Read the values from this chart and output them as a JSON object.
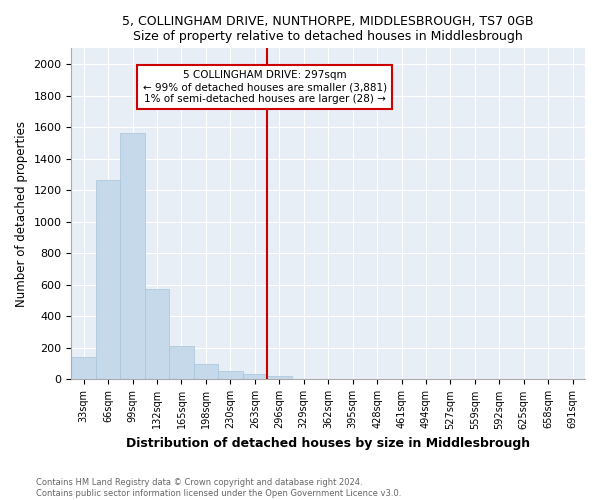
{
  "title": "5, COLLINGHAM DRIVE, NUNTHORPE, MIDDLESBROUGH, TS7 0GB",
  "subtitle": "Size of property relative to detached houses in Middlesbrough",
  "xlabel": "Distribution of detached houses by size in Middlesbrough",
  "ylabel": "Number of detached properties",
  "footnote1": "Contains HM Land Registry data © Crown copyright and database right 2024.",
  "footnote2": "Contains public sector information licensed under the Open Government Licence v3.0.",
  "annotation_title": "5 COLLINGHAM DRIVE: 297sqm",
  "annotation_line1": "← 99% of detached houses are smaller (3,881)",
  "annotation_line2": "1% of semi-detached houses are larger (28) →",
  "bar_color": "#c6d9eb",
  "bar_edge_color": "#a8c4da",
  "property_line_color": "#cc0000",
  "annotation_box_color": "#cc0000",
  "cat_labels": [
    "33sqm",
    "66sqm",
    "99sqm",
    "132sqm",
    "165sqm",
    "198sqm",
    "230sqm",
    "263sqm",
    "296sqm",
    "329sqm",
    "362sqm",
    "395sqm",
    "428sqm",
    "461sqm",
    "494sqm",
    "527sqm",
    "559sqm",
    "592sqm",
    "625sqm",
    "658sqm",
    "691sqm"
  ],
  "values": [
    140,
    1265,
    1565,
    575,
    215,
    100,
    55,
    35,
    20,
    5,
    5,
    0,
    0,
    0,
    0,
    0,
    0,
    0,
    0,
    0,
    0
  ],
  "ylim": [
    0,
    2100
  ],
  "yticks": [
    0,
    200,
    400,
    600,
    800,
    1000,
    1200,
    1400,
    1600,
    1800,
    2000
  ],
  "property_line_idx": 8,
  "bg_color": "#e8eef5",
  "grid_color": "white"
}
